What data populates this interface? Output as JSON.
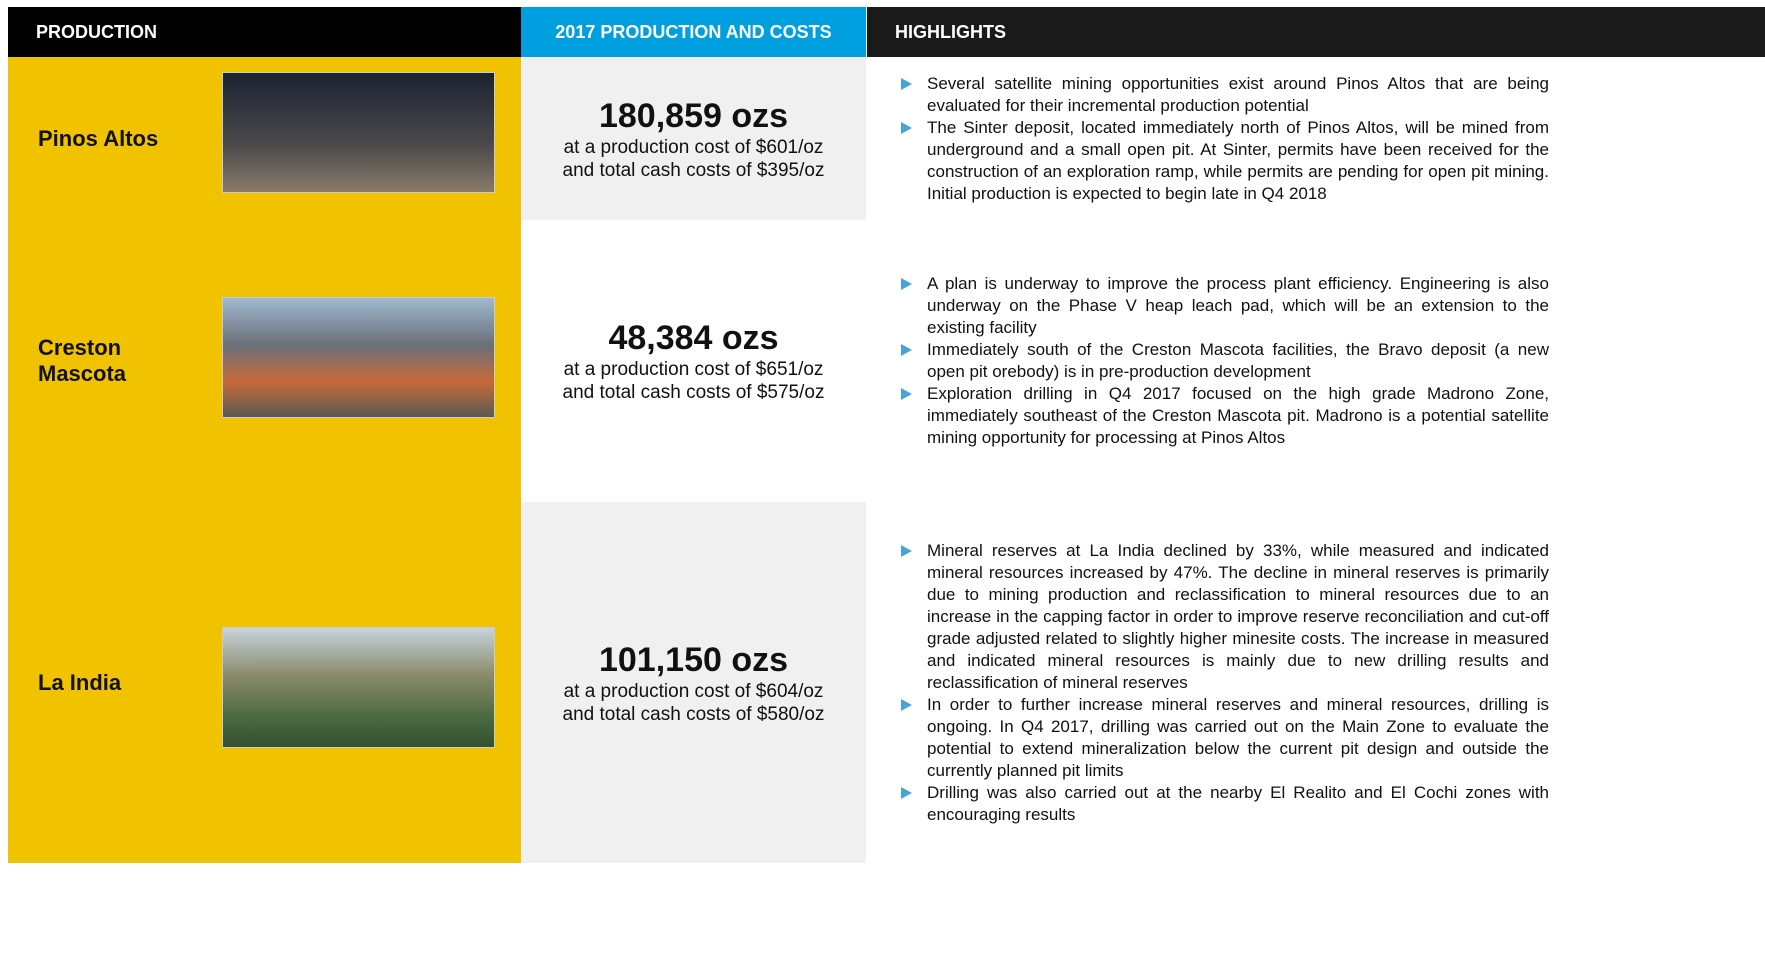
{
  "header": {
    "production": "PRODUCTION",
    "costs": "2017 PRODUCTION AND COSTS",
    "highlights": "HIGHLIGHTS"
  },
  "rows": [
    {
      "name": "Pinos Altos",
      "ounces": "180,859 ozs",
      "cost_line": "at a production cost of $601/oz",
      "cash_line": "and total cash costs of $395/oz",
      "highlights": [
        "Several satellite mining opportunities exist around Pinos Altos that are being evaluated for their incremental production potential",
        "The Sinter deposit, located immediately north of Pinos Altos, will be mined from underground and a small open pit. At Sinter, permits have been received for the construction of an exploration ramp, while permits are pending for open pit mining. Initial production is expected to begin late in Q4 2018"
      ]
    },
    {
      "name": "Creston Mascota",
      "ounces": "48,384 ozs",
      "cost_line": "at a production cost of $651/oz",
      "cash_line": "and total cash costs of $575/oz",
      "highlights": [
        "A plan is underway to improve the process plant efficiency. Engineering is also underway on the Phase V heap leach pad, which will be an extension to the existing facility",
        "Immediately south of the Creston Mascota facilities, the Bravo deposit (a new open pit orebody) is in pre-production development",
        "Exploration drilling in Q4 2017 focused on the high grade Madrono Zone, immediately southeast of the Creston Mascota pit. Madrono is a potential satellite mining opportunity for processing at Pinos Altos"
      ]
    },
    {
      "name": "La India",
      "ounces": "101,150 ozs",
      "cost_line": "at a production cost of $604/oz",
      "cash_line": "and total cash costs of $580/oz",
      "highlights": [
        "Mineral reserves at La India declined by 33%, while measured and indicated mineral resources increased by 47%. The decline in mineral reserves is primarily due to mining production and reclassification to mineral resources due to an increase in the capping factor in order to improve reserve reconciliation and cut-off grade adjusted related to slightly higher minesite costs. The increase in measured and indicated mineral resources is mainly due to new drilling results and reclassification of mineral reserves",
        "In order to further increase mineral reserves and mineral resources, drilling is ongoing. In Q4 2017, drilling was carried out on the Main Zone to evaluate the potential to extend mineralization below the current pit design and outside the currently planned pit limits",
        "Drilling was also carried out at the nearby El Realito and El Cochi zones with encouraging results"
      ]
    }
  ]
}
